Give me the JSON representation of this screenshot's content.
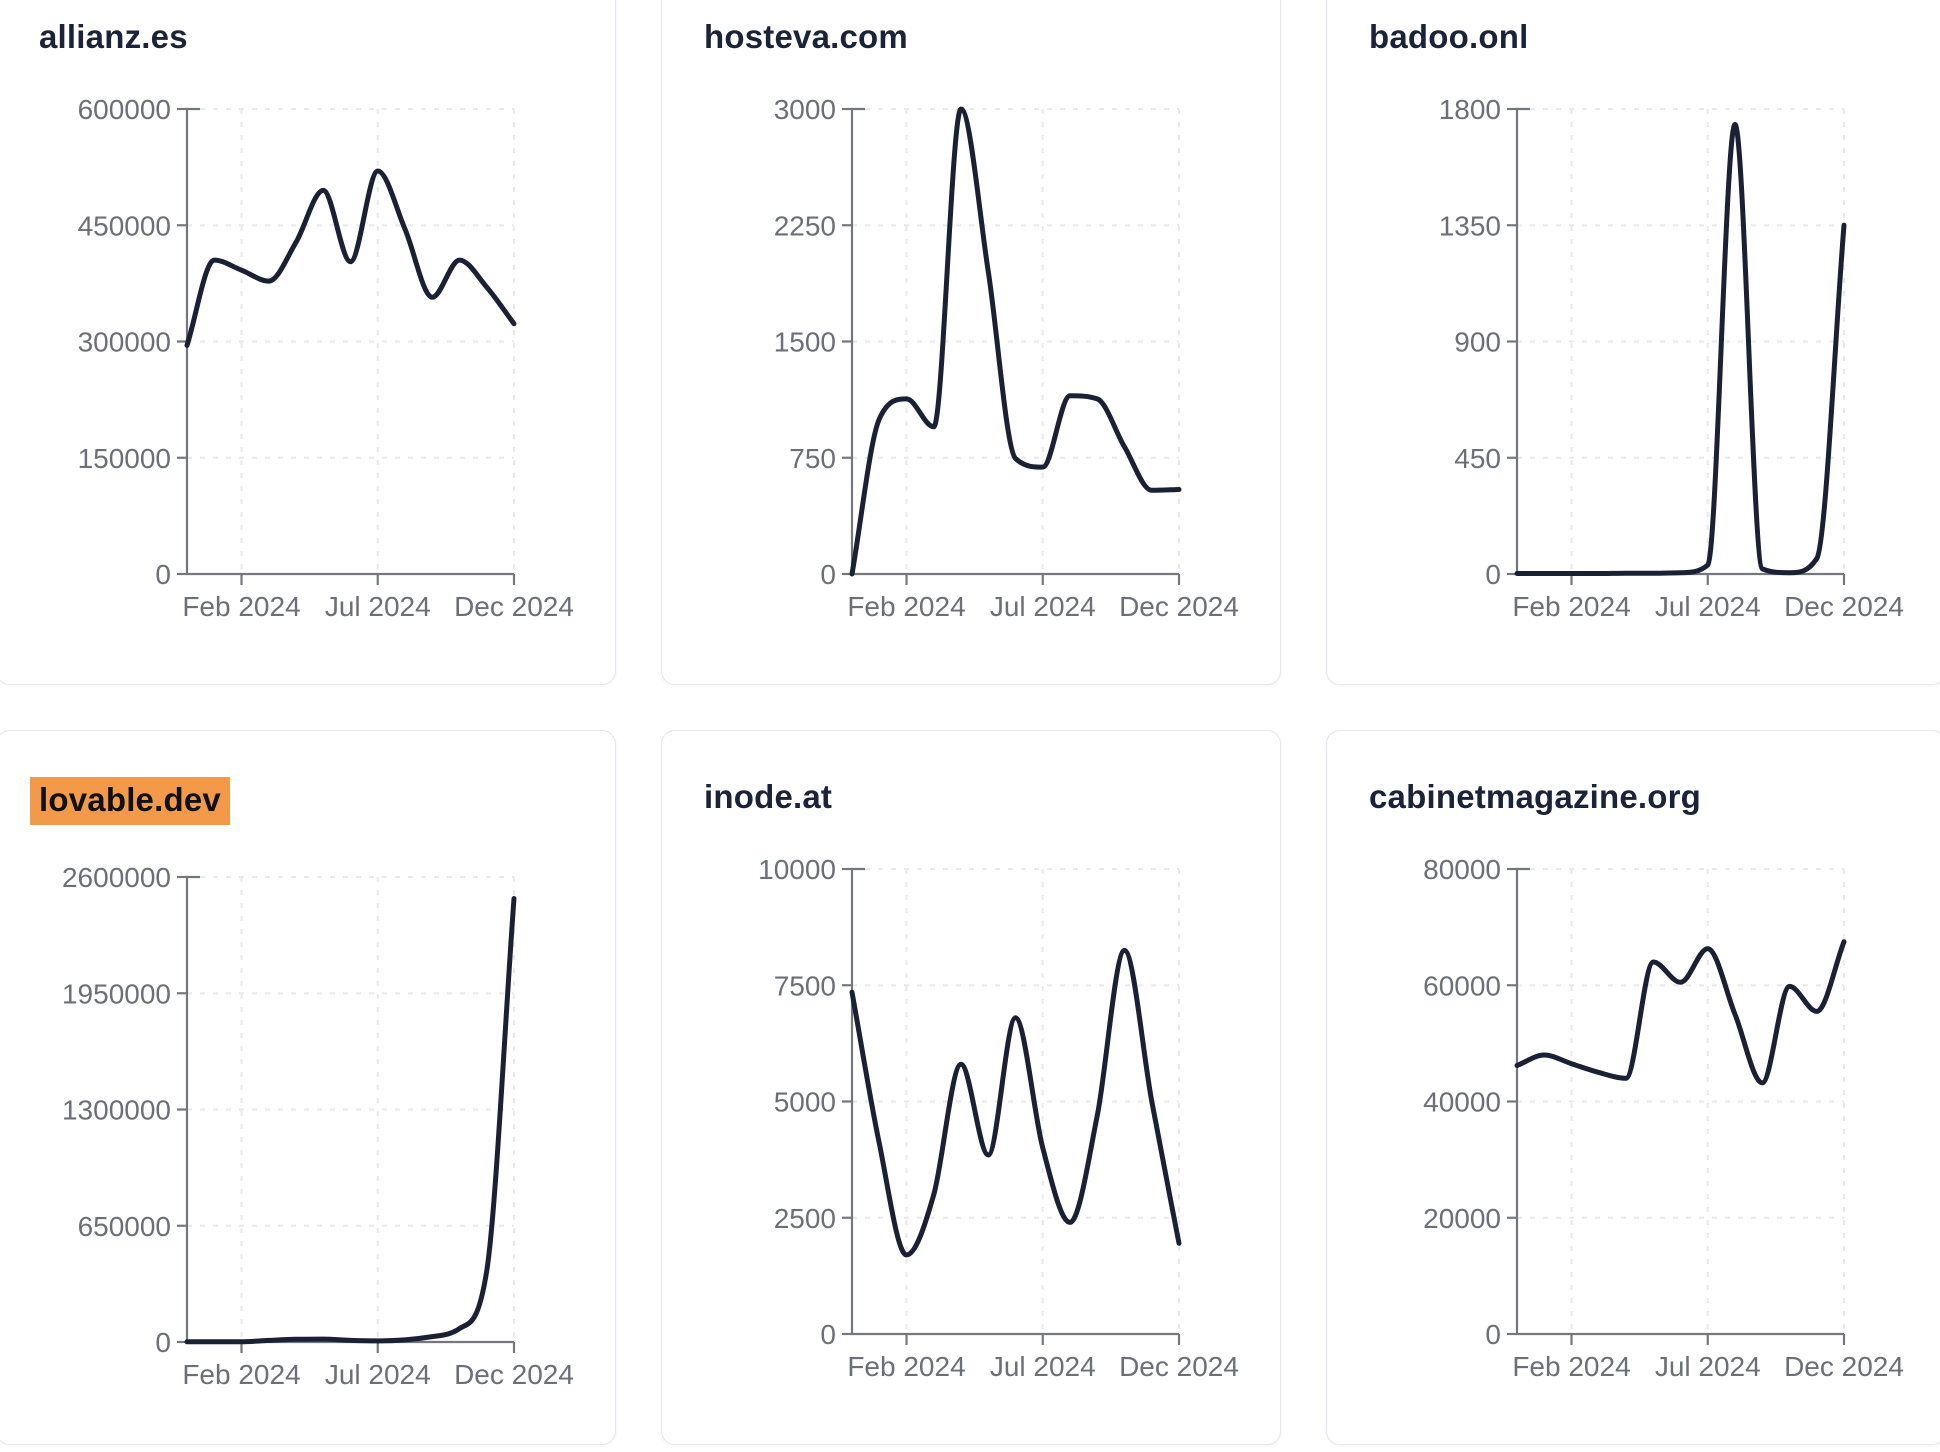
{
  "page": {
    "background": "#ffffff",
    "description": "Grid of six website traffic sparkline cards, monthly visits Dec 2023 - Dec 2024"
  },
  "colors": {
    "card_border": "#e5e6ef",
    "title_text": "#1a2338",
    "highlight_background": "#f2994a",
    "highlight_text": "#0e1116",
    "axis": "#74777d",
    "tick_text": "#6b6f78",
    "gridline": "#e8e8ef",
    "series_line": "#1b2134"
  },
  "cards": [
    {
      "title": "allianz.es",
      "highlighted": false
    },
    {
      "title": "hosteva.com",
      "highlighted": false
    },
    {
      "title": "badoo.onl",
      "highlighted": false
    },
    {
      "title": "lovable.dev",
      "highlighted": true
    },
    {
      "title": "inode.at",
      "highlighted": false
    },
    {
      "title": "cabinetmagazine.org",
      "highlighted": false
    }
  ],
  "chart_data": [
    {
      "type": "line",
      "title": "allianz.es",
      "x": [
        "Dec 2023",
        "Jan 2024",
        "Feb 2024",
        "Mar 2024",
        "Apr 2024",
        "May 2024",
        "Jun 2024",
        "Jul 2024",
        "Aug 2024",
        "Sep 2024",
        "Oct 2024",
        "Nov 2024",
        "Dec 2024"
      ],
      "values": [
        295000,
        405000,
        392000,
        378000,
        428000,
        495000,
        403000,
        520000,
        445000,
        357000,
        405000,
        370000,
        323000
      ],
      "y_ticks": [
        0,
        150000,
        300000,
        450000,
        600000
      ],
      "ylim": [
        0,
        600000
      ],
      "x_tick_labels": [
        "Feb 2024",
        "Jul 2024",
        "Dec 2024"
      ],
      "x_tick_indices": [
        2,
        7,
        12
      ],
      "grid": true,
      "legend": "none"
    },
    {
      "type": "line",
      "title": "hosteva.com",
      "x": [
        "Dec 2023",
        "Jan 2024",
        "Feb 2024",
        "Mar 2024",
        "Apr 2024",
        "May 2024",
        "Jun 2024",
        "Jul 2024",
        "Aug 2024",
        "Sep 2024",
        "Oct 2024",
        "Nov 2024",
        "Dec 2024"
      ],
      "values": [
        0,
        1000,
        1130,
        950,
        3000,
        1950,
        745,
        690,
        1150,
        1130,
        820,
        540,
        545
      ],
      "y_ticks": [
        0,
        750,
        1500,
        2250,
        3000
      ],
      "ylim": [
        0,
        3000
      ],
      "x_tick_labels": [
        "Feb 2024",
        "Jul 2024",
        "Dec 2024"
      ],
      "x_tick_indices": [
        2,
        7,
        12
      ],
      "grid": true,
      "legend": "none"
    },
    {
      "type": "line",
      "title": "badoo.onl",
      "x": [
        "Dec 2023",
        "Jan 2024",
        "Feb 2024",
        "Mar 2024",
        "Apr 2024",
        "May 2024",
        "Jun 2024",
        "Jul 2024",
        "Aug 2024",
        "Sep 2024",
        "Oct 2024",
        "Nov 2024",
        "Dec 2024"
      ],
      "values": [
        2,
        2,
        2,
        2,
        3,
        3,
        5,
        35,
        1740,
        20,
        5,
        60,
        1350
      ],
      "y_ticks": [
        0,
        450,
        900,
        1350,
        1800
      ],
      "ylim": [
        0,
        1800
      ],
      "x_tick_labels": [
        "Feb 2024",
        "Jul 2024",
        "Dec 2024"
      ],
      "x_tick_indices": [
        2,
        7,
        12
      ],
      "grid": true,
      "legend": "none"
    },
    {
      "type": "line",
      "title": "lovable.dev",
      "x": [
        "Dec 2023",
        "Jan 2024",
        "Feb 2024",
        "Mar 2024",
        "Apr 2024",
        "May 2024",
        "Jun 2024",
        "Jul 2024",
        "Aug 2024",
        "Sep 2024",
        "Oct 2024",
        "Nov 2024",
        "Dec 2024"
      ],
      "values": [
        1000,
        1200,
        1500,
        9000,
        15000,
        16000,
        9000,
        6000,
        12000,
        30000,
        75000,
        400000,
        2480000
      ],
      "y_ticks": [
        0,
        650000,
        1300000,
        1950000,
        2600000
      ],
      "ylim": [
        0,
        2600000
      ],
      "x_tick_labels": [
        "Feb 2024",
        "Jul 2024",
        "Dec 2024"
      ],
      "x_tick_indices": [
        2,
        7,
        12
      ],
      "grid": true,
      "legend": "none"
    },
    {
      "type": "line",
      "title": "inode.at",
      "x": [
        "Dec 2023",
        "Jan 2024",
        "Feb 2024",
        "Mar 2024",
        "Apr 2024",
        "May 2024",
        "Jun 2024",
        "Jul 2024",
        "Aug 2024",
        "Sep 2024",
        "Oct 2024",
        "Nov 2024",
        "Dec 2024"
      ],
      "values": [
        7350,
        4100,
        1700,
        3000,
        5800,
        3850,
        6800,
        4000,
        2400,
        4700,
        8250,
        5000,
        1950
      ],
      "y_ticks": [
        0,
        2500,
        5000,
        7500,
        10000
      ],
      "ylim": [
        0,
        10000
      ],
      "x_tick_labels": [
        "Feb 2024",
        "Jul 2024",
        "Dec 2024"
      ],
      "x_tick_indices": [
        2,
        7,
        12
      ],
      "grid": true,
      "legend": "none"
    },
    {
      "type": "line",
      "title": "cabinetmagazine.org",
      "x": [
        "Dec 2023",
        "Jan 2024",
        "Feb 2024",
        "Mar 2024",
        "Apr 2024",
        "May 2024",
        "Jun 2024",
        "Jul 2024",
        "Aug 2024",
        "Sep 2024",
        "Oct 2024",
        "Nov 2024",
        "Dec 2024"
      ],
      "values": [
        46200,
        48000,
        46500,
        45000,
        44000,
        64000,
        60500,
        66300,
        55000,
        43200,
        59800,
        55500,
        67500
      ],
      "y_ticks": [
        0,
        20000,
        40000,
        60000,
        80000
      ],
      "ylim": [
        0,
        80000
      ],
      "x_tick_labels": [
        "Feb 2024",
        "Jul 2024",
        "Dec 2024"
      ],
      "x_tick_indices": [
        2,
        7,
        12
      ],
      "grid": true,
      "legend": "none"
    }
  ]
}
